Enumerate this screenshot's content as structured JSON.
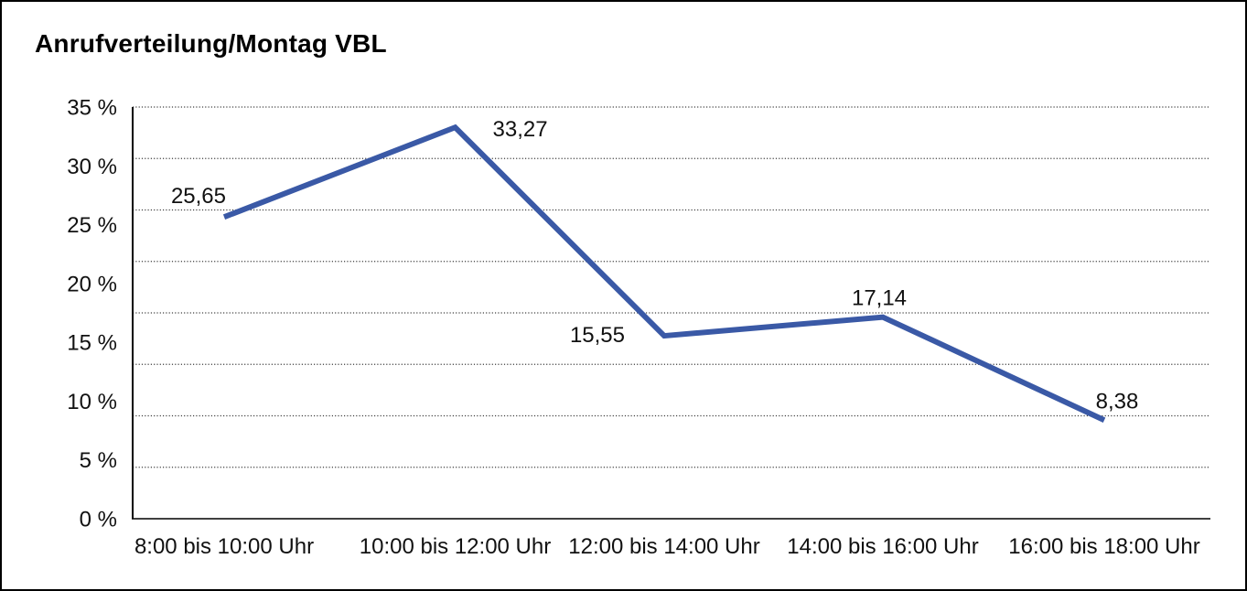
{
  "title": "Anrufverteilung/Montag VBL",
  "chart_data": {
    "type": "line",
    "title": "Anrufverteilung/Montag VBL",
    "categories": [
      "8:00 bis 10:00 Uhr",
      "10:00 bis 12:00 Uhr",
      "12:00 bis 14:00 Uhr",
      "14:00 bis 16:00 Uhr",
      "16:00 bis 18:00 Uhr"
    ],
    "values": [
      25.65,
      33.27,
      15.55,
      17.14,
      8.38
    ],
    "value_labels": [
      "25,65",
      "33,27",
      "15,55",
      "17,14",
      "8,38"
    ],
    "y_tick_labels": [
      "35 %",
      "30 %",
      "25 %",
      "20 %",
      "15 %",
      "10 %",
      "5 %",
      "0 %"
    ],
    "y_tick_values": [
      35,
      30,
      25,
      20,
      15,
      10,
      5,
      0
    ],
    "ylim": [
      0,
      35
    ],
    "xlabel": "",
    "ylabel": "",
    "legend": "none",
    "grid": "horizontal dotted",
    "marker": "none",
    "line_color": "#3A59A6",
    "axis_color": "#000000",
    "grid_color": "#3f3f3f",
    "text_color": "#111111",
    "background_color": "#FFFFFF",
    "border_color": "#000000"
  }
}
